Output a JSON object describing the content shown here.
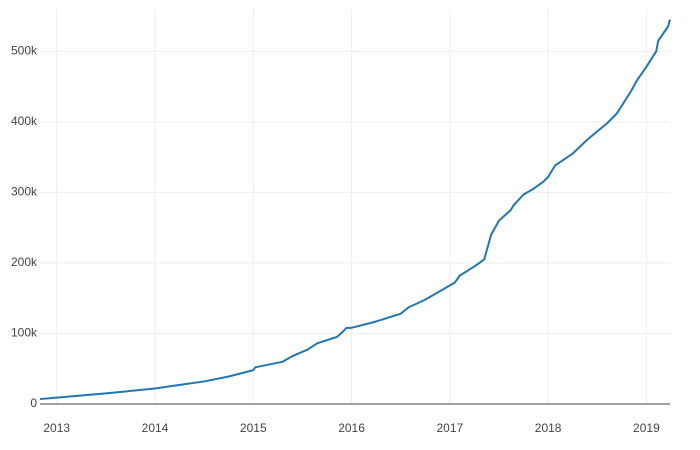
{
  "chart_data": {
    "type": "line",
    "x": [
      2012.83,
      2013.0,
      2013.5,
      2014.0,
      2014.2,
      2014.5,
      2014.75,
      2015.0,
      2015.02,
      2015.3,
      2015.4,
      2015.55,
      2015.65,
      2015.85,
      2015.9,
      2015.95,
      2016.0,
      2016.25,
      2016.5,
      2016.58,
      2016.75,
      2016.9,
      2017.05,
      2017.1,
      2017.25,
      2017.35,
      2017.42,
      2017.5,
      2017.62,
      2017.65,
      2017.75,
      2017.85,
      2017.95,
      2018.0,
      2018.07,
      2018.25,
      2018.4,
      2018.6,
      2018.7,
      2018.85,
      2018.9,
      2019.0,
      2019.1,
      2019.12,
      2019.22,
      2019.24
    ],
    "series": [
      {
        "color": "#1f77b4",
        "values": [
          7000,
          9000,
          15000,
          22000,
          26000,
          32000,
          39000,
          48000,
          52000,
          60000,
          68000,
          77000,
          86000,
          95000,
          101000,
          108000,
          108000,
          117000,
          128000,
          137000,
          148000,
          160000,
          172000,
          182000,
          195000,
          205000,
          240000,
          260000,
          275000,
          282000,
          297000,
          305000,
          315000,
          322000,
          338000,
          355000,
          375000,
          398000,
          412000,
          445000,
          458000,
          478000,
          500000,
          515000,
          535000,
          545000
        ]
      }
    ],
    "xlim": [
      2012.83,
      2019.24
    ],
    "xticks": [
      2013,
      2014,
      2015,
      2016,
      2017,
      2018,
      2019
    ],
    "ylim": [
      0,
      560000
    ],
    "yticks": [
      0,
      {
        "value": 100000,
        "label": "100k"
      },
      {
        "value": 200000,
        "label": "200k"
      },
      {
        "value": 300000,
        "label": "300k"
      },
      {
        "value": 400000,
        "label": "400k"
      },
      {
        "value": 500000,
        "label": "500k"
      }
    ],
    "grid": true
  }
}
